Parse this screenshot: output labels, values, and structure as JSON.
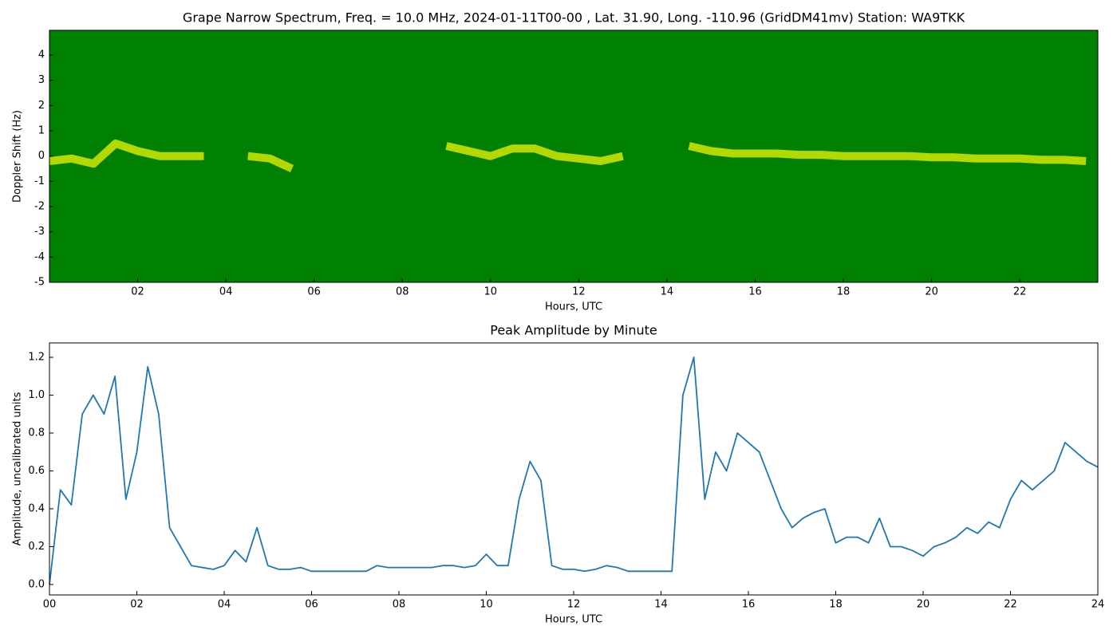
{
  "chart_data": [
    {
      "type": "spectrogram",
      "title": "Grape Narrow Spectrum, Freq. = 10.0 MHz, 2024-01-11T00-00 , Lat.  31.90, Long. -110.96 (GridDM41mv) Station: WA9TKK",
      "xlabel": "Hours, UTC",
      "ylabel": "Doppler Shift (Hz)",
      "background": "#008000",
      "color": "#ffff00",
      "x": [
        0,
        0.5,
        1,
        1.5,
        2,
        2.5,
        3,
        3.5,
        4,
        4.5,
        5,
        5.5,
        6,
        6.5,
        7,
        7.5,
        8,
        8.5,
        9,
        9.5,
        10,
        10.5,
        11,
        11.5,
        12,
        12.5,
        13,
        13.5,
        14,
        14.5,
        15,
        15.5,
        16,
        16.5,
        17,
        17.5,
        18,
        18.5,
        19,
        19.5,
        20,
        20.5,
        21,
        21.5,
        22,
        22.5,
        23,
        23.5
      ],
      "values": [
        -0.2,
        -0.1,
        -0.3,
        0.5,
        0.2,
        0,
        0,
        0,
        null,
        0,
        -0.1,
        -0.5,
        null,
        null,
        null,
        null,
        null,
        null,
        0.4,
        0.2,
        0,
        0.3,
        0.3,
        0,
        -0.1,
        -0.2,
        0,
        null,
        null,
        0.4,
        0.2,
        0.1,
        0.1,
        0.1,
        0.05,
        0.05,
        0,
        0,
        0,
        0,
        -0.05,
        -0.05,
        -0.1,
        -0.1,
        -0.1,
        -0.15,
        -0.15,
        -0.2
      ],
      "xlim": [
        0,
        23.77
      ],
      "xticks": [
        {
          "value": 2,
          "label": "02"
        },
        {
          "value": 4,
          "label": "04"
        },
        {
          "value": 6,
          "label": "06"
        },
        {
          "value": 8,
          "label": "08"
        },
        {
          "value": 10,
          "label": "10"
        },
        {
          "value": 12,
          "label": "12"
        },
        {
          "value": 14,
          "label": "14"
        },
        {
          "value": 16,
          "label": "16"
        },
        {
          "value": 18,
          "label": "18"
        },
        {
          "value": 20,
          "label": "20"
        },
        {
          "value": 22,
          "label": "22"
        }
      ],
      "ylim": [
        -5,
        4.98
      ],
      "yticks": [
        -5,
        -4,
        -3,
        -2,
        -1,
        0,
        1,
        2,
        3,
        4
      ]
    },
    {
      "type": "line",
      "title": "Peak Amplitude by Minute",
      "xlabel": "Hours, UTC",
      "ylabel": "Amplitude, uncalibrated units",
      "color": "#1f77b4",
      "x": [
        0,
        0.25,
        0.5,
        0.75,
        1,
        1.25,
        1.5,
        1.75,
        2,
        2.25,
        2.5,
        2.75,
        3,
        3.25,
        3.5,
        3.75,
        4,
        4.25,
        4.5,
        4.75,
        5,
        5.25,
        5.5,
        5.75,
        6,
        6.25,
        6.5,
        6.75,
        7,
        7.25,
        7.5,
        7.75,
        8,
        8.25,
        8.5,
        8.75,
        9,
        9.25,
        9.5,
        9.75,
        10,
        10.25,
        10.5,
        10.75,
        11,
        11.25,
        11.5,
        11.75,
        12,
        12.25,
        12.5,
        12.75,
        13,
        13.25,
        13.5,
        13.75,
        14,
        14.25,
        14.5,
        14.75,
        15,
        15.25,
        15.5,
        15.75,
        16,
        16.25,
        16.5,
        16.75,
        17,
        17.25,
        17.5,
        17.75,
        18,
        18.25,
        18.5,
        18.75,
        19,
        19.25,
        19.5,
        19.75,
        20,
        20.25,
        20.5,
        20.75,
        21,
        21.25,
        21.5,
        21.75,
        22,
        22.25,
        22.5,
        22.75,
        23,
        23.25,
        23.5,
        23.75,
        24
      ],
      "values": [
        0,
        0.5,
        0.42,
        0.9,
        1.0,
        0.9,
        1.1,
        0.45,
        0.7,
        1.15,
        0.9,
        0.3,
        0.2,
        0.1,
        0.09,
        0.08,
        0.1,
        0.18,
        0.12,
        0.3,
        0.1,
        0.08,
        0.08,
        0.09,
        0.07,
        0.07,
        0.07,
        0.07,
        0.07,
        0.07,
        0.1,
        0.09,
        0.09,
        0.09,
        0.09,
        0.09,
        0.1,
        0.1,
        0.09,
        0.1,
        0.16,
        0.1,
        0.1,
        0.45,
        0.65,
        0.55,
        0.1,
        0.08,
        0.08,
        0.07,
        0.08,
        0.1,
        0.09,
        0.07,
        0.07,
        0.07,
        0.07,
        0.07,
        1.0,
        1.2,
        0.45,
        0.7,
        0.6,
        0.8,
        0.75,
        0.7,
        0.55,
        0.4,
        0.3,
        0.35,
        0.38,
        0.4,
        0.22,
        0.25,
        0.25,
        0.22,
        0.35,
        0.2,
        0.2,
        0.18,
        0.15,
        0.2,
        0.22,
        0.25,
        0.3,
        0.27,
        0.33,
        0.3,
        0.45,
        0.55,
        0.5,
        0.55,
        0.6,
        0.75,
        0.7,
        0.65,
        0.62
      ],
      "xlim": [
        0,
        24
      ],
      "xticks": [
        {
          "value": 0,
          "label": "00"
        },
        {
          "value": 2,
          "label": "02"
        },
        {
          "value": 4,
          "label": "04"
        },
        {
          "value": 6,
          "label": "06"
        },
        {
          "value": 8,
          "label": "08"
        },
        {
          "value": 10,
          "label": "10"
        },
        {
          "value": 12,
          "label": "12"
        },
        {
          "value": 14,
          "label": "14"
        },
        {
          "value": 16,
          "label": "16"
        },
        {
          "value": 18,
          "label": "18"
        },
        {
          "value": 20,
          "label": "20"
        },
        {
          "value": 22,
          "label": "22"
        },
        {
          "value": 24,
          "label": "24"
        }
      ],
      "ylim": [
        -0.055,
        1.276
      ],
      "yticks": [
        {
          "value": 0,
          "label": "0.0"
        },
        {
          "value": 0.2,
          "label": "0.2"
        },
        {
          "value": 0.4,
          "label": "0.4"
        },
        {
          "value": 0.6,
          "label": "0.6"
        },
        {
          "value": 0.8,
          "label": "0.8"
        },
        {
          "value": 1.0,
          "label": "1.0"
        },
        {
          "value": 1.2,
          "label": "1.2"
        }
      ]
    }
  ]
}
